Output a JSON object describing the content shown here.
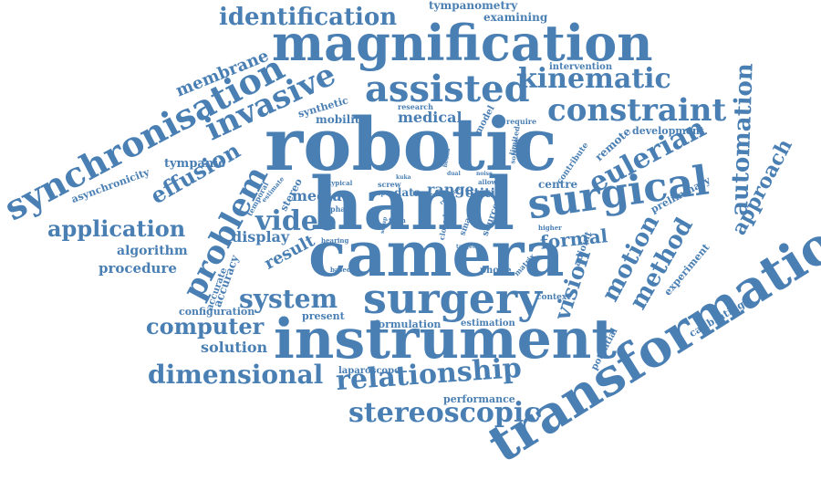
{
  "colors": {
    "word": "#4a7fb4",
    "background": "#ffffff"
  },
  "words": [
    "robotic",
    "hand",
    "camera",
    "magnification",
    "instrument",
    "transformation",
    "surgery",
    "surgical",
    "synchronisation",
    "assisted",
    "constraint",
    "kinematic",
    "identification",
    "invasive",
    "problem",
    "eulerian",
    "automation",
    "video",
    "relationship",
    "stereoscopic",
    "dimensional",
    "system",
    "computer",
    "application",
    "motion",
    "method",
    "vision",
    "effusion",
    "approach",
    "membrane",
    "formal",
    "display",
    "result",
    "media",
    "medical",
    "range",
    "otitis",
    "solution",
    "procedure",
    "algorithm",
    "tympanic",
    "tympanometry",
    "examining",
    "remote",
    "development",
    "mobility",
    "synthetic",
    "asynchronicity",
    "configuration",
    "present",
    "accuracy",
    "accurate",
    "laparoscope",
    "performance",
    "formulation",
    "estimation",
    "calibrating",
    "experiment",
    "preliminary",
    "potential",
    "context",
    "phone",
    "adjoint",
    "centre",
    "intervention",
    "research",
    "model",
    "require",
    "contribute",
    "limited",
    "solving",
    "stereo",
    "temporal",
    "estimate",
    "typical",
    "phase",
    "hearing",
    "based",
    "screw",
    "kuka",
    "paper",
    "data",
    "source",
    "smart",
    "closed",
    "form",
    "trocar",
    "higher",
    "allow",
    "target",
    "matrix",
    "dual",
    "focal",
    "noise",
    "bound",
    "rotation",
    "setup",
    "mode"
  ]
}
